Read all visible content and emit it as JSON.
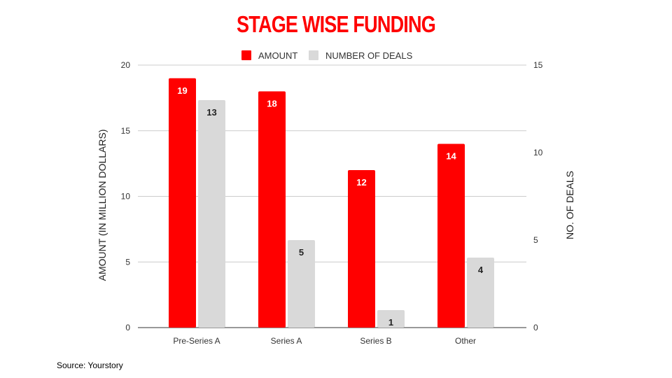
{
  "chart_data": {
    "type": "bar",
    "title": "STAGE WISE FUNDING",
    "categories": [
      "Pre-Series A",
      "Series A",
      "Series B",
      "Other"
    ],
    "series": [
      {
        "name": "AMOUNT",
        "axis": "left",
        "color": "#ff0000",
        "label_color": "#ffffff",
        "values": [
          19,
          18,
          12,
          14
        ]
      },
      {
        "name": "NUMBER OF DEALS",
        "axis": "right",
        "color": "#d9d9d9",
        "label_color": "#222222",
        "values": [
          13,
          5,
          1,
          4
        ]
      }
    ],
    "ylabel": "AMOUNT (IN MILLION DOLLARS)",
    "ylabel_right": "NO. OF DEALS",
    "ylim": [
      0,
      20
    ],
    "ylim_right": [
      0,
      15
    ],
    "yticks": [
      0,
      5,
      10,
      15,
      20
    ],
    "yticks_right": [
      0,
      5,
      10,
      15
    ],
    "grid": true,
    "legend_position": "top"
  },
  "source": "Source: Yourstory"
}
